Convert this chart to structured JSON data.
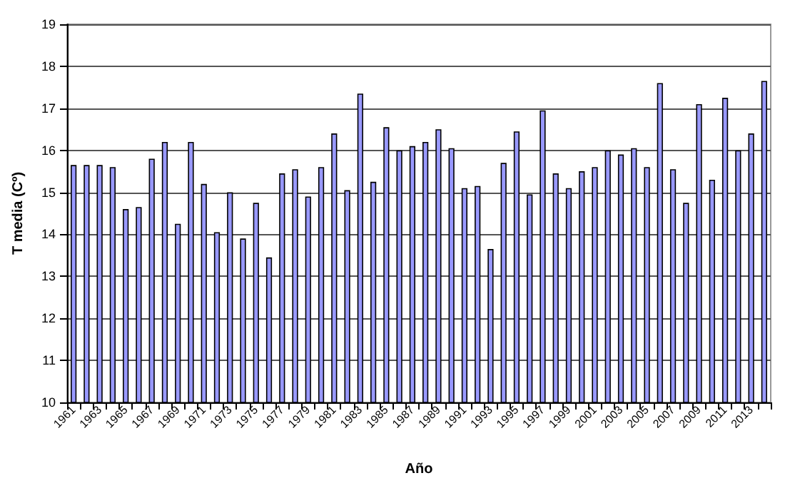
{
  "chart_data": {
    "type": "bar",
    "xlabel": "Año",
    "ylabel": "T media (Cº)",
    "categories": [
      "1961",
      null,
      "1963",
      null,
      "1965",
      null,
      "1967",
      null,
      "1969",
      null,
      "1971",
      null,
      "1973",
      null,
      "1975",
      null,
      "1977",
      null,
      "1979",
      null,
      "1981",
      null,
      "1983",
      null,
      "1985",
      null,
      "1987",
      null,
      "1989",
      null,
      "1991",
      null,
      "1993",
      null,
      "1995",
      null,
      "1997",
      null,
      "1999",
      null,
      "2001",
      null,
      "2003",
      null,
      "2005",
      null,
      "2007",
      null,
      "2009",
      null,
      "2011",
      null,
      "2013",
      null
    ],
    "values": [
      15.65,
      15.65,
      15.65,
      15.6,
      14.6,
      14.65,
      15.8,
      16.2,
      14.25,
      16.2,
      15.2,
      14.05,
      15.0,
      13.9,
      14.75,
      13.45,
      15.45,
      15.55,
      14.9,
      15.6,
      16.4,
      15.05,
      17.35,
      15.25,
      16.55,
      16.0,
      16.1,
      16.2,
      16.5,
      16.05,
      15.1,
      15.15,
      13.65,
      15.7,
      16.45,
      14.95,
      16.95,
      15.45,
      15.1,
      15.5,
      15.6,
      16.0,
      15.9,
      16.05,
      15.6,
      17.6,
      15.55,
      14.75,
      17.1,
      15.3,
      17.25,
      16.0,
      16.4,
      17.65
    ],
    "color": "#9999ff",
    "ylim": [
      10,
      19
    ],
    "yticks": [
      10,
      11,
      12,
      13,
      14,
      15,
      16,
      17,
      18,
      19
    ],
    "grid": "y"
  }
}
